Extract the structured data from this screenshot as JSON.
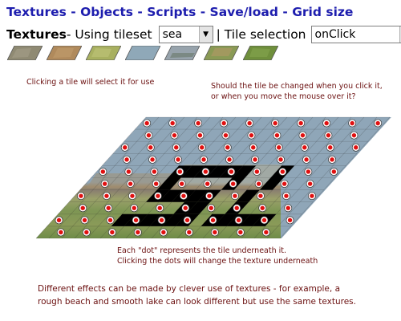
{
  "nav": {
    "links": [
      "Textures",
      "Objects",
      "Scripts",
      "Save/load",
      "Grid size"
    ],
    "separator": " - "
  },
  "toolbar": {
    "section_title": "Textures",
    "using_text": " - Using tileset",
    "tileset_value": "sea",
    "tile_selection_label": "| Tile selection",
    "tile_selection_value": "onClick"
  },
  "tile_swatches": [
    {
      "name": "rock",
      "color": "#8f8a73"
    },
    {
      "name": "sand",
      "color": "#b08a5c"
    },
    {
      "name": "grass-light",
      "color": "#a8b060"
    },
    {
      "name": "water",
      "color": "#8fa8b8"
    },
    {
      "name": "sea-rocks",
      "color": "#97a3ac"
    },
    {
      "name": "grass-sand",
      "color": "#8a9a55"
    },
    {
      "name": "grass-dark",
      "color": "#6f8f3c"
    }
  ],
  "notes": {
    "select_tile": "Clicking a tile will select it for use",
    "selection_mode": [
      "Should the tile be changed when you click it,",
      "or when you move the mouse over it?"
    ],
    "dots": [
      "Each \"dot\" represents the tile underneath it.",
      "Clicking the dots will change the texture underneath"
    ],
    "effects": [
      "Different effects can be made by clever use of textures - for example, a",
      "rough beach and smooth lake can look different but use the same textures."
    ]
  },
  "colors": {
    "nav_link": "#1d1dae",
    "note_text": "#6b1010",
    "water": "#8fa6b8",
    "dot_red": "#e01010",
    "letters": "#000000"
  }
}
